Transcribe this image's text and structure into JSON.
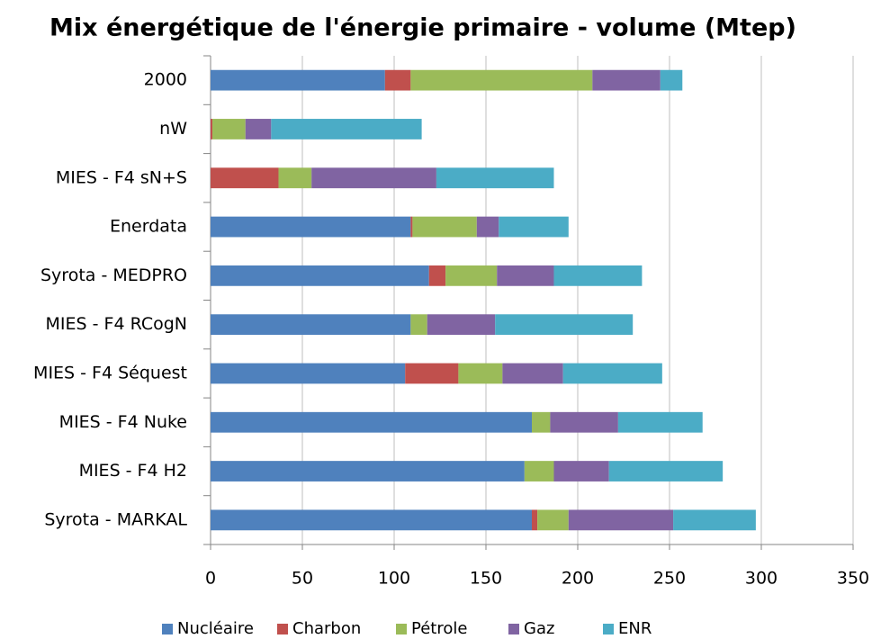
{
  "chart_data": {
    "type": "stacked-barh",
    "title": "Mix énergétique de l'énergie primaire - volume (Mtep)",
    "categories": [
      "2000",
      "nW",
      "MIES - F4 sN+S",
      "Enerdata",
      "Syrota - MEDPRO",
      "MIES - F4 RCogN",
      "MIES - F4 Séquest",
      "MIES - F4 Nuke",
      "MIES - F4 H2",
      "Syrota - MARKAL"
    ],
    "series": [
      {
        "name": "Nucléaire",
        "color": "#4f81bd",
        "values": [
          95,
          0,
          0,
          109,
          119,
          109,
          106,
          175,
          171,
          175
        ]
      },
      {
        "name": "Charbon",
        "color": "#c0504d",
        "values": [
          14,
          1,
          37,
          1,
          9,
          0,
          29,
          0,
          0,
          3
        ]
      },
      {
        "name": "Pétrole",
        "color": "#9bbb59",
        "values": [
          99,
          18,
          18,
          35,
          28,
          9,
          24,
          10,
          16,
          17
        ]
      },
      {
        "name": "Gaz",
        "color": "#8064a2",
        "values": [
          37,
          14,
          68,
          12,
          31,
          37,
          33,
          37,
          30,
          57
        ]
      },
      {
        "name": "ENR",
        "color": "#4bacc6",
        "values": [
          12,
          82,
          64,
          38,
          48,
          75,
          54,
          46,
          62,
          45
        ]
      }
    ],
    "xlim": [
      0,
      350
    ],
    "xticks": [
      0,
      50,
      100,
      150,
      200,
      250,
      300,
      350
    ],
    "grid": true,
    "legend": "bottom"
  }
}
